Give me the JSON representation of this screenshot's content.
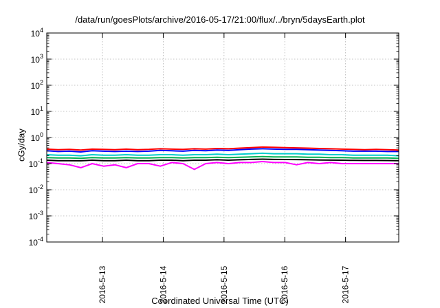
{
  "chart_data": {
    "type": "line",
    "title": "/data/run/goesPlots/archive/2016-05-17/21:00/flux/../bryn/5daysEarth.plot",
    "xlabel": "Coordinated Universal Time (UTC)",
    "ylabel": "cGy/day",
    "yscale": "log",
    "ylim": [
      0.0001,
      10000
    ],
    "xlim": [
      "2016-05-12 02:00",
      "2016-05-17 21:00"
    ],
    "grid": true,
    "x_ticks": [
      "2016-5-13",
      "2016-5-14",
      "2016-5-15",
      "2016-5-16",
      "2016-5-17"
    ],
    "y_ticks": [
      {
        "base": "10",
        "exp": "-4",
        "value": 0.0001
      },
      {
        "base": "10",
        "exp": "-3",
        "value": 0.001
      },
      {
        "base": "10",
        "exp": "-2",
        "value": 0.01
      },
      {
        "base": "10",
        "exp": "-1",
        "value": 0.1
      },
      {
        "base": "10",
        "exp": "0",
        "value": 1
      },
      {
        "base": "10",
        "exp": "1",
        "value": 10
      },
      {
        "base": "10",
        "exp": "2",
        "value": 100
      },
      {
        "base": "10",
        "exp": "3",
        "value": 1000
      },
      {
        "base": "10",
        "exp": "4",
        "value": 10000
      }
    ],
    "series": [
      {
        "color": "#ff0000",
        "values": [
          0.36,
          0.34,
          0.35,
          0.33,
          0.36,
          0.35,
          0.34,
          0.36,
          0.34,
          0.35,
          0.37,
          0.36,
          0.35,
          0.37,
          0.36,
          0.38,
          0.37,
          0.39,
          0.41,
          0.43,
          0.42,
          0.41,
          0.4,
          0.39,
          0.38,
          0.37,
          0.36,
          0.35,
          0.34,
          0.35,
          0.34,
          0.33
        ]
      },
      {
        "color": "#0000ff",
        "values": [
          0.31,
          0.29,
          0.3,
          0.28,
          0.31,
          0.3,
          0.29,
          0.3,
          0.29,
          0.3,
          0.32,
          0.31,
          0.3,
          0.32,
          0.31,
          0.33,
          0.32,
          0.34,
          0.36,
          0.37,
          0.36,
          0.35,
          0.35,
          0.34,
          0.33,
          0.32,
          0.31,
          0.3,
          0.3,
          0.3,
          0.29,
          0.29
        ]
      },
      {
        "color": "#00cccc",
        "values": [
          0.22,
          0.21,
          0.21,
          0.2,
          0.22,
          0.21,
          0.21,
          0.22,
          0.21,
          0.21,
          0.22,
          0.22,
          0.21,
          0.22,
          0.22,
          0.23,
          0.22,
          0.23,
          0.24,
          0.25,
          0.24,
          0.24,
          0.24,
          0.23,
          0.23,
          0.22,
          0.22,
          0.21,
          0.21,
          0.21,
          0.21,
          0.2
        ]
      },
      {
        "color": "#00b050",
        "values": [
          0.17,
          0.165,
          0.165,
          0.16,
          0.17,
          0.165,
          0.165,
          0.17,
          0.165,
          0.165,
          0.17,
          0.17,
          0.165,
          0.17,
          0.17,
          0.175,
          0.17,
          0.175,
          0.18,
          0.185,
          0.18,
          0.18,
          0.18,
          0.175,
          0.175,
          0.17,
          0.17,
          0.165,
          0.165,
          0.165,
          0.165,
          0.16
        ]
      },
      {
        "color": "#000000",
        "values": [
          0.135,
          0.13,
          0.13,
          0.128,
          0.135,
          0.13,
          0.13,
          0.135,
          0.13,
          0.13,
          0.135,
          0.135,
          0.13,
          0.135,
          0.135,
          0.14,
          0.135,
          0.14,
          0.145,
          0.148,
          0.145,
          0.144,
          0.143,
          0.14,
          0.138,
          0.136,
          0.135,
          0.133,
          0.132,
          0.132,
          0.131,
          0.13
        ]
      },
      {
        "color": "#ff00ff",
        "values": [
          0.11,
          0.1,
          0.09,
          0.07,
          0.1,
          0.08,
          0.09,
          0.07,
          0.1,
          0.1,
          0.08,
          0.11,
          0.1,
          0.06,
          0.1,
          0.11,
          0.1,
          0.11,
          0.11,
          0.12,
          0.11,
          0.11,
          0.09,
          0.11,
          0.1,
          0.11,
          0.1,
          0.1,
          0.1,
          0.1,
          0.1,
          0.1
        ]
      }
    ]
  }
}
